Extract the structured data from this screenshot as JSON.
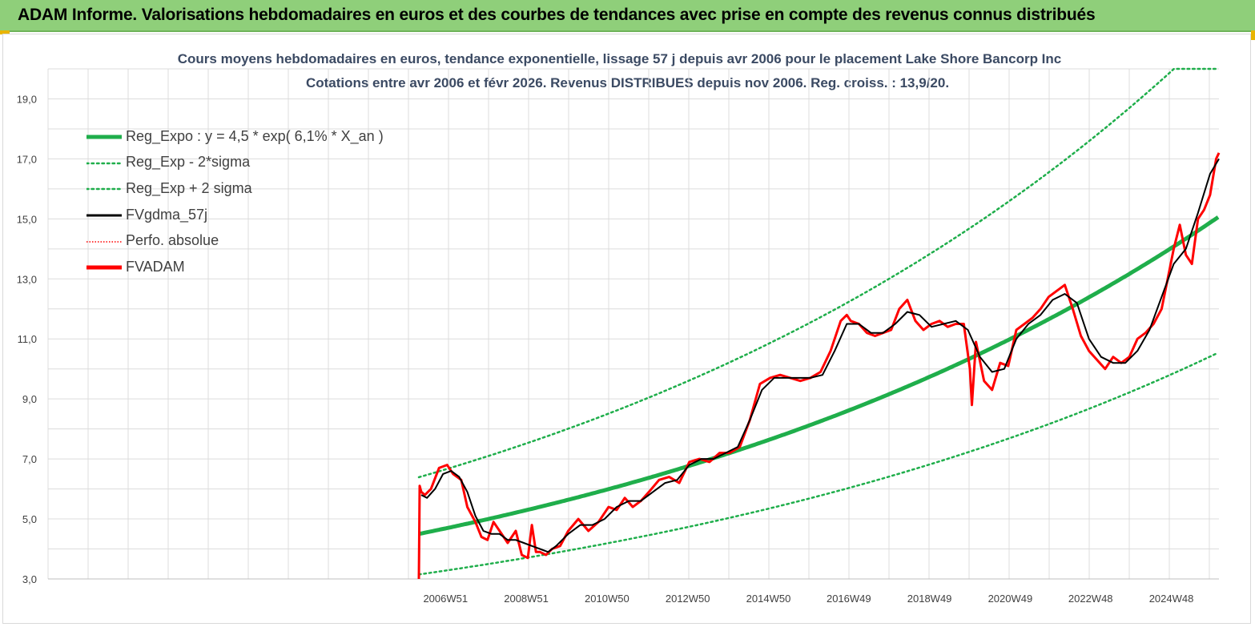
{
  "banner": {
    "title": "ADAM Informe. Valorisations hebdomadaires en euros et des courbes de tendances avec prise en compte des revenus connus distribués"
  },
  "colors": {
    "banner_bg": "#8fcf7a",
    "reg_green": "#1fae4b",
    "black": "#000000",
    "red": "#ff0000",
    "title_text": "#3b4a63"
  },
  "chart_data": {
    "type": "line",
    "title": "Cours moyens hebdomadaires en euros, tendance exponentielle, lissage 57 j depuis avr 2006 pour le placement Lake Shore Bancorp Inc",
    "subtitle": "Cotations entre avr 2006 et févr 2026. Revenus DISTRIBUES depuis nov 2006. Reg. croiss. : 13,9/20.",
    "xlabel": "",
    "ylabel": "",
    "ylim": [
      3,
      20
    ],
    "xlim": [
      2006.3,
      2026.12
    ],
    "y_ticks": [
      "3,0",
      "5,0",
      "7,0",
      "9,0",
      "11,0",
      "13,0",
      "15,0",
      "17,0",
      "19,0"
    ],
    "x_ticks": [
      "2006W51",
      "2008W51",
      "2010W50",
      "2012W50",
      "2014W50",
      "2016W49",
      "2018W49",
      "2020W49",
      "2022W48",
      "2024W48"
    ],
    "x_tick_years": [
      2006.96,
      2008.96,
      2010.96,
      2012.96,
      2014.96,
      2016.95,
      2018.95,
      2020.95,
      2022.94,
      2024.94
    ],
    "grid": true,
    "legend_position": "top-left",
    "legend": [
      {
        "label": "Reg_Expo : y = 4,5 * exp( 6,1% *  X_an )",
        "style": "solid-thick",
        "color": "#1fae4b"
      },
      {
        "label": "Reg_Exp - 2*sigma",
        "style": "dotted",
        "color": "#1fae4b"
      },
      {
        "label": "Reg_Exp + 2 sigma",
        "style": "dotted",
        "color": "#1fae4b"
      },
      {
        "label": "FVgdma_57j",
        "style": "solid",
        "color": "#000000"
      },
      {
        "label": "Perfo. absolue",
        "style": "dotted-thin",
        "color": "#ff0000"
      },
      {
        "label": "FVADAM",
        "style": "solid-thick",
        "color": "#ff0000"
      }
    ],
    "regression": {
      "a": 4.5,
      "rate": 0.061,
      "start_year": 2006.3
    },
    "band_upper_cap": 20,
    "series": [
      {
        "name": "FVADAM",
        "x": [
          2006.3,
          2006.32,
          2006.36,
          2006.45,
          2006.6,
          2006.8,
          2007.0,
          2007.15,
          2007.35,
          2007.5,
          2007.7,
          2007.85,
          2008.0,
          2008.15,
          2008.3,
          2008.5,
          2008.7,
          2008.85,
          2009.0,
          2009.1,
          2009.2,
          2009.3,
          2009.45,
          2009.6,
          2009.8,
          2010.0,
          2010.25,
          2010.5,
          2010.75,
          2011.0,
          2011.2,
          2011.4,
          2011.6,
          2011.8,
          2012.0,
          2012.25,
          2012.5,
          2012.75,
          2013.0,
          2013.25,
          2013.5,
          2013.75,
          2014.0,
          2014.25,
          2014.5,
          2014.75,
          2015.0,
          2015.25,
          2015.5,
          2015.75,
          2016.0,
          2016.25,
          2016.5,
          2016.75,
          2016.9,
          2017.0,
          2017.2,
          2017.4,
          2017.6,
          2017.8,
          2018.0,
          2018.2,
          2018.4,
          2018.6,
          2018.8,
          2019.0,
          2019.2,
          2019.4,
          2019.6,
          2019.8,
          2019.95,
          2020.0,
          2020.1,
          2020.3,
          2020.5,
          2020.7,
          2020.9,
          2021.1,
          2021.3,
          2021.5,
          2021.7,
          2021.9,
          2022.1,
          2022.3,
          2022.5,
          2022.7,
          2022.9,
          2023.1,
          2023.3,
          2023.5,
          2023.7,
          2023.9,
          2024.1,
          2024.3,
          2024.5,
          2024.7,
          2024.85,
          2025.0,
          2025.15,
          2025.3,
          2025.45,
          2025.6,
          2025.75,
          2025.9,
          2026.05,
          2026.12
        ],
        "y": [
          3.0,
          6.1,
          5.9,
          5.8,
          6.0,
          6.7,
          6.8,
          6.5,
          6.3,
          5.4,
          4.9,
          4.4,
          4.3,
          4.9,
          4.6,
          4.2,
          4.6,
          3.8,
          3.7,
          4.8,
          3.9,
          3.9,
          3.8,
          4.0,
          4.1,
          4.6,
          5.0,
          4.6,
          4.9,
          5.4,
          5.3,
          5.7,
          5.4,
          5.6,
          5.9,
          6.3,
          6.4,
          6.2,
          6.9,
          7.0,
          6.9,
          7.2,
          7.2,
          7.4,
          8.3,
          9.5,
          9.7,
          9.8,
          9.7,
          9.6,
          9.7,
          9.9,
          10.6,
          11.6,
          11.8,
          11.6,
          11.5,
          11.2,
          11.1,
          11.2,
          11.3,
          12.0,
          12.3,
          11.6,
          11.3,
          11.5,
          11.6,
          11.4,
          11.5,
          11.5,
          10.0,
          8.8,
          10.9,
          9.6,
          9.3,
          10.2,
          10.1,
          11.3,
          11.5,
          11.7,
          12.0,
          12.4,
          12.6,
          12.8,
          12.0,
          11.1,
          10.6,
          10.3,
          10.0,
          10.4,
          10.2,
          10.4,
          11.0,
          11.2,
          11.5,
          12.0,
          13.0,
          14.0,
          14.8,
          13.8,
          13.5,
          15.0,
          15.3,
          15.8,
          17.0,
          17.2
        ]
      },
      {
        "name": "FVgdma_57j",
        "x": [
          2006.36,
          2006.5,
          2006.7,
          2006.9,
          2007.1,
          2007.3,
          2007.5,
          2007.7,
          2007.9,
          2008.1,
          2008.3,
          2008.5,
          2008.7,
          2008.9,
          2009.1,
          2009.3,
          2009.5,
          2009.7,
          2010.0,
          2010.3,
          2010.6,
          2010.9,
          2011.2,
          2011.5,
          2011.8,
          2012.1,
          2012.4,
          2012.7,
          2013.0,
          2013.3,
          2013.6,
          2013.9,
          2014.2,
          2014.5,
          2014.8,
          2015.1,
          2015.4,
          2015.7,
          2016.0,
          2016.3,
          2016.6,
          2016.9,
          2017.2,
          2017.5,
          2017.8,
          2018.1,
          2018.4,
          2018.7,
          2019.0,
          2019.3,
          2019.6,
          2019.9,
          2020.2,
          2020.5,
          2020.8,
          2021.1,
          2021.4,
          2021.7,
          2022.0,
          2022.3,
          2022.6,
          2022.9,
          2023.2,
          2023.5,
          2023.8,
          2024.1,
          2024.4,
          2024.7,
          2025.0,
          2025.3,
          2025.6,
          2025.9,
          2026.12
        ],
        "y": [
          5.8,
          5.7,
          6.0,
          6.5,
          6.6,
          6.4,
          5.9,
          5.1,
          4.6,
          4.5,
          4.5,
          4.3,
          4.3,
          4.2,
          4.1,
          4.0,
          3.9,
          4.1,
          4.5,
          4.8,
          4.8,
          5.0,
          5.4,
          5.6,
          5.6,
          5.9,
          6.2,
          6.3,
          6.8,
          7.0,
          7.0,
          7.2,
          7.4,
          8.3,
          9.3,
          9.7,
          9.7,
          9.7,
          9.7,
          9.8,
          10.6,
          11.5,
          11.5,
          11.2,
          11.2,
          11.5,
          11.9,
          11.8,
          11.4,
          11.5,
          11.6,
          11.3,
          10.4,
          9.9,
          10.0,
          11.0,
          11.5,
          11.8,
          12.3,
          12.5,
          12.2,
          11.0,
          10.4,
          10.2,
          10.2,
          10.6,
          11.3,
          12.4,
          13.5,
          14.0,
          15.2,
          16.5,
          17.0
        ]
      }
    ]
  }
}
